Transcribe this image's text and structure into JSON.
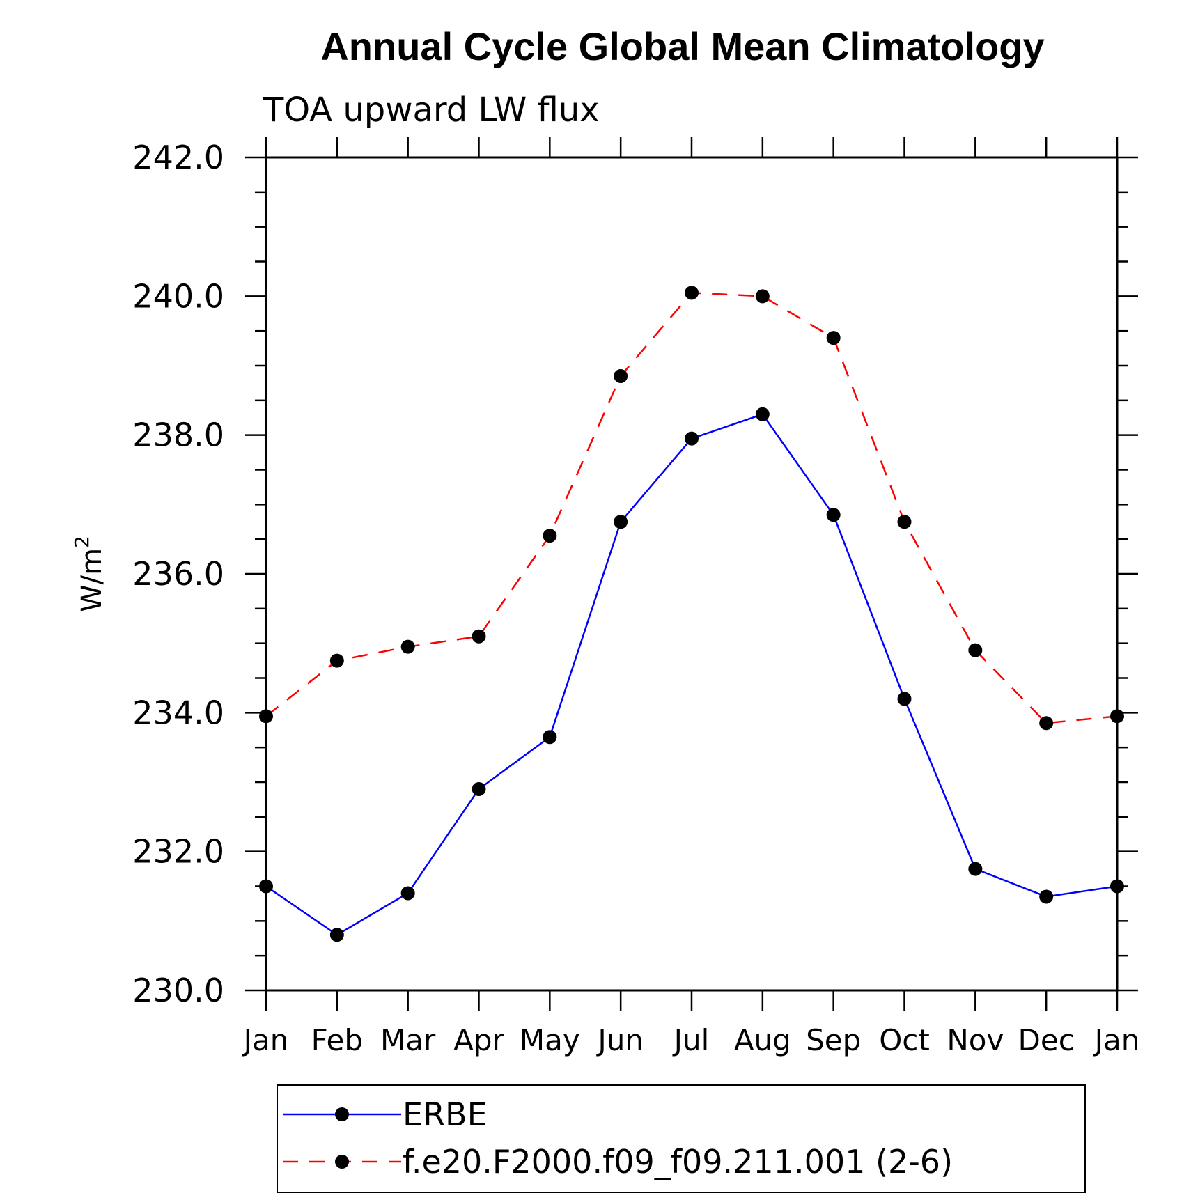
{
  "chart_data": {
    "type": "line",
    "title": "Annual Cycle Global Mean Climatology",
    "subtitle": "TOA upward LW flux",
    "ylabel": "W/m",
    "ylabel_superscript": "2",
    "xlabel": "",
    "categories": [
      "Jan",
      "Feb",
      "Mar",
      "Apr",
      "May",
      "Jun",
      "Jul",
      "Aug",
      "Sep",
      "Oct",
      "Nov",
      "Dec",
      "Jan"
    ],
    "ylim": [
      230.0,
      242.0
    ],
    "yticks": [
      230.0,
      232.0,
      234.0,
      236.0,
      238.0,
      240.0,
      242.0
    ],
    "ytick_labels": [
      "230.0",
      "232.0",
      "234.0",
      "236.0",
      "238.0",
      "240.0",
      "242.0"
    ],
    "y_minor_step": 0.5,
    "grid": false,
    "legend_position": "bottom",
    "series": [
      {
        "name": "ERBE",
        "color": "#0000ff",
        "dash": "solid",
        "marker": "circle",
        "values": [
          231.5,
          230.8,
          231.4,
          232.9,
          233.65,
          236.75,
          237.95,
          238.3,
          236.85,
          234.2,
          231.75,
          231.35,
          231.5
        ]
      },
      {
        "name": "f.e20.F2000.f09_f09.211.001 (2-6)",
        "color": "#ff0000",
        "dash": "dashed",
        "marker": "circle",
        "values": [
          233.95,
          234.75,
          234.95,
          235.1,
          236.55,
          238.85,
          240.05,
          240.0,
          239.4,
          236.75,
          234.9,
          233.85,
          233.95
        ]
      }
    ]
  }
}
